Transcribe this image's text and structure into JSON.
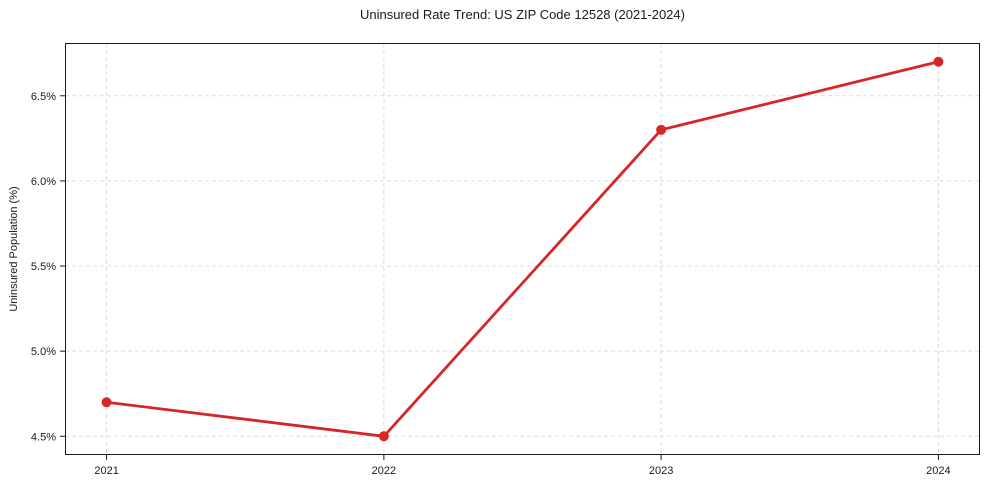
{
  "title": "Uninsured Rate Trend: US ZIP Code 12528 (2021-2024)",
  "chart_data": {
    "type": "line",
    "title": "Uninsured Rate Trend: US ZIP Code 12528 (2021-2024)",
    "xlabel": "",
    "ylabel": "Uninsured Population (%)",
    "x": [
      2021,
      2022,
      2023,
      2024
    ],
    "y": [
      4.7,
      4.5,
      6.3,
      6.7
    ],
    "xlim": [
      2020.85,
      2024.15
    ],
    "ylim": [
      4.39,
      6.81
    ],
    "x_ticks": [
      {
        "value": 2021,
        "label": "2021"
      },
      {
        "value": 2022,
        "label": "2022"
      },
      {
        "value": 2023,
        "label": "2023"
      },
      {
        "value": 2024,
        "label": "2024"
      }
    ],
    "y_ticks": [
      {
        "value": 4.5,
        "label": "4.5%"
      },
      {
        "value": 5.0,
        "label": "5.0%"
      },
      {
        "value": 5.5,
        "label": "5.5%"
      },
      {
        "value": 6.0,
        "label": "6.0%"
      },
      {
        "value": 6.5,
        "label": "6.5%"
      }
    ],
    "grid": true,
    "legend_position": "none",
    "line_color": "#d62728",
    "marker": "circle",
    "marker_radius": 5,
    "line_width": 2.8,
    "grid_color": "#dcdcdc",
    "axis_color": "#1a1a1a",
    "tick_label_color": "#1a1a1a",
    "background": "#ffffff"
  }
}
